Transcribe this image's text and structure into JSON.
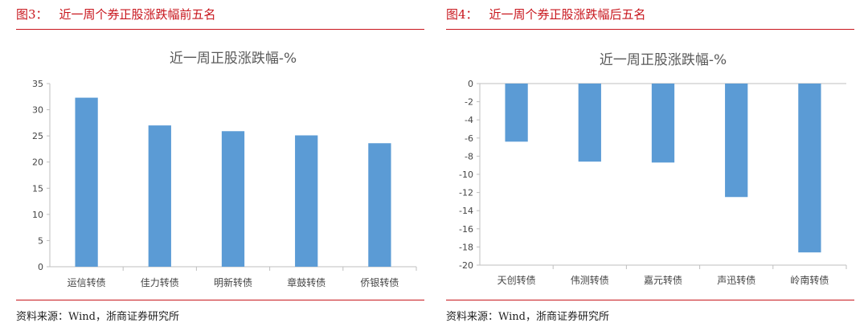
{
  "colors": {
    "accent": "#c8161d",
    "bar": "#5b9bd5"
  },
  "charts": [
    {
      "figure_label": "图3：",
      "figure_title": "近一周个券正股涨跌幅前五名",
      "source": "资料来源：Wind，浙商证券研究所",
      "chart_data": {
        "type": "bar",
        "title": "近一周正股涨跌幅-%",
        "xlabel": "",
        "ylabel": "",
        "categories": [
          "运信转债",
          "佳力转债",
          "明新转债",
          "章鼓转债",
          "侨银转债"
        ],
        "values": [
          32.3,
          27.0,
          25.9,
          25.1,
          23.6
        ],
        "ylim": [
          0,
          35
        ],
        "yticks": [
          "0",
          "5",
          "10",
          "15",
          "20",
          "25",
          "30",
          "35"
        ],
        "grid": false,
        "legend": "none"
      }
    },
    {
      "figure_label": "图4：",
      "figure_title": "近一周个券正股涨跌幅后五名",
      "source": "资料来源：Wind，浙商证券研究所",
      "chart_data": {
        "type": "bar",
        "title": "近一周正股涨跌幅-%",
        "xlabel": "",
        "ylabel": "",
        "categories": [
          "天创转债",
          "伟测转债",
          "嘉元转债",
          "声迅转债",
          "岭南转债"
        ],
        "values": [
          -6.4,
          -8.6,
          -8.7,
          -12.5,
          -18.6
        ],
        "ylim": [
          -20,
          0
        ],
        "yticks": [
          "0",
          "-2",
          "-4",
          "-6",
          "-8",
          "-10",
          "-12",
          "-14",
          "-16",
          "-18",
          "-20"
        ],
        "grid": false,
        "legend": "none"
      }
    }
  ]
}
